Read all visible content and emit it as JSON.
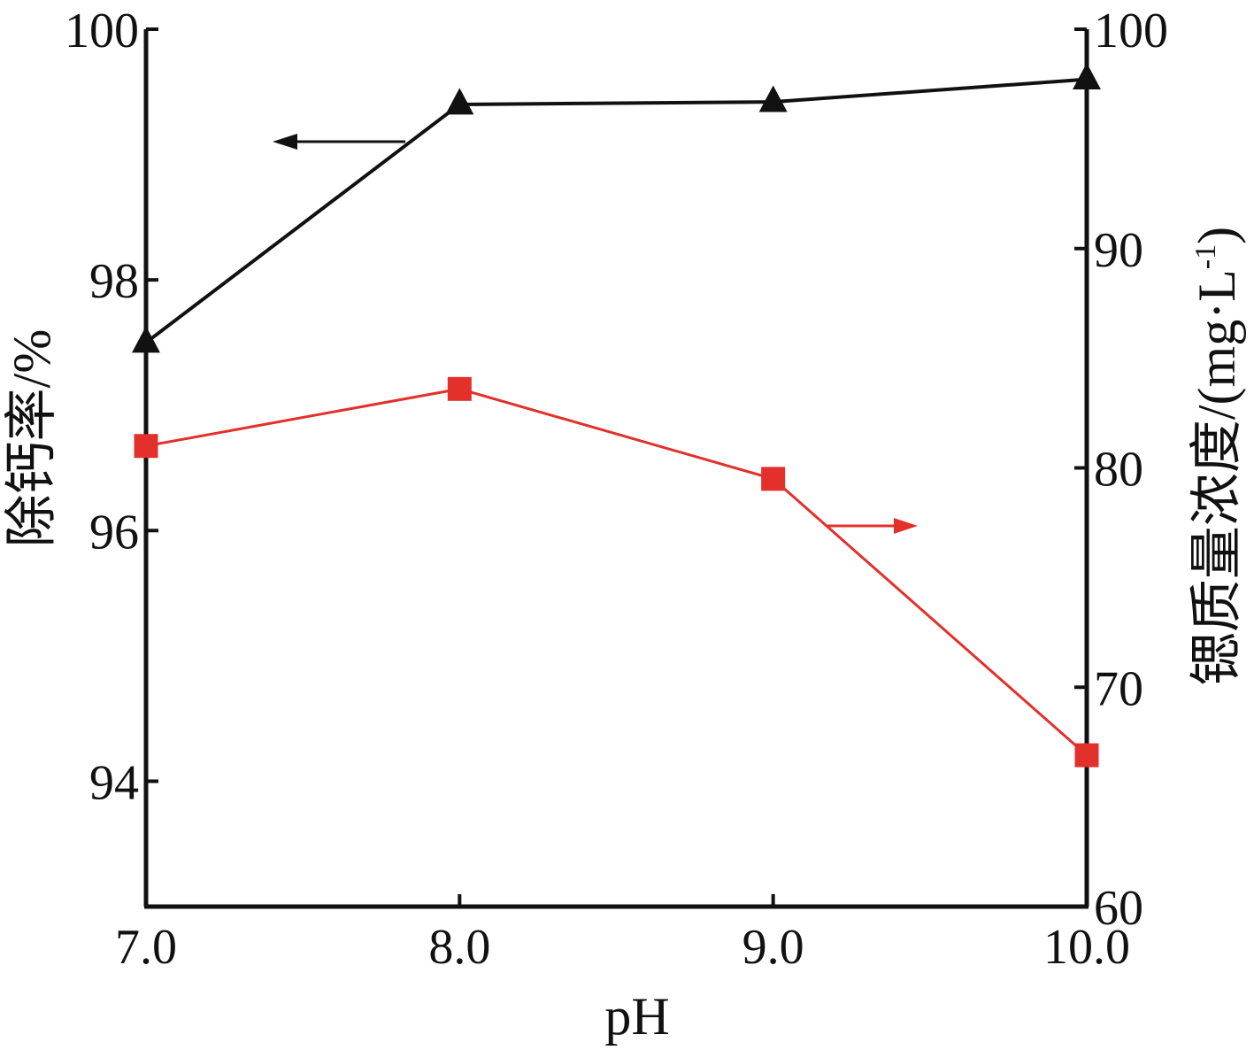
{
  "chart_data": {
    "type": "line",
    "xlabel": "pH",
    "ylabel_left": "除钙率/%",
    "ylabel_right": "锶质量浓度/(mg·L-1)",
    "ylabel_right_main": "锶质量浓度/(mg·L",
    "ylabel_right_sup": "-1",
    "ylabel_right_close": ")",
    "x": [
      7.0,
      8.0,
      9.0,
      10.0
    ],
    "x_tick_labels": [
      "7.0",
      "8.0",
      "9.0",
      "10.0"
    ],
    "xlim": [
      7.0,
      10.0
    ],
    "ylim_left": [
      93,
      100
    ],
    "ylim_right": [
      60,
      100
    ],
    "y_ticks_left": [
      94,
      96,
      98,
      100
    ],
    "y_ticks_left_labels": [
      "94",
      "96",
      "98",
      "100"
    ],
    "y_ticks_right": [
      60,
      70,
      80,
      90,
      100
    ],
    "y_ticks_right_labels": [
      "60",
      "70",
      "80",
      "90",
      "100"
    ],
    "series": [
      {
        "axis": "left",
        "marker": "triangle",
        "color": "#111111",
        "values": [
          97.5,
          99.4,
          99.42,
          99.6
        ]
      },
      {
        "axis": "right",
        "marker": "square",
        "color": "#e3302b",
        "values": [
          81.0,
          83.6,
          79.5,
          66.9
        ]
      }
    ],
    "grid": false,
    "legend": "none"
  }
}
